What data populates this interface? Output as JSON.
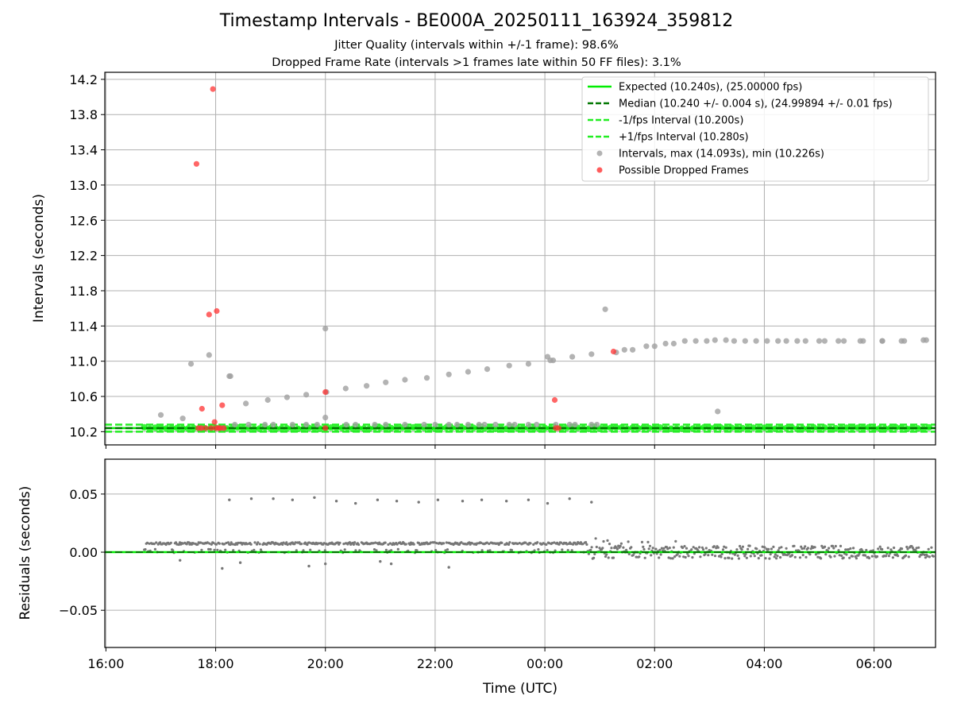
{
  "figure": {
    "title": "Timestamp Intervals - BE000A_20250111_163924_359812",
    "subtitle_jitter": "Jitter Quality (intervals within +/-1 frame): 98.6%",
    "subtitle_dropped": "Dropped Frame Rate (intervals >1 frames late within 50 FF files): 3.1%"
  },
  "colors": {
    "expected": "#00ee00",
    "median": "#007700",
    "bounds": "#22ee22",
    "intervals": "#a0a0a0",
    "dropped": "#ff3333",
    "residuals": "#777777",
    "grid": "#b0b0b0"
  },
  "chart_data": [
    {
      "type": "scatter",
      "id": "intervals",
      "xlabel": "",
      "ylabel": "Intervals (seconds)",
      "xlim_hours": [
        15.98,
        31.12
      ],
      "ylim": [
        10.05,
        14.28
      ],
      "yticks": [
        10.2,
        10.6,
        11.0,
        11.4,
        11.8,
        12.2,
        12.6,
        13.0,
        13.4,
        13.8,
        14.2
      ],
      "ytick_labels": [
        "10.2",
        "10.6",
        "11.0",
        "11.4",
        "11.8",
        "12.2",
        "12.6",
        "13.0",
        "13.4",
        "13.8",
        "14.2"
      ],
      "grid": true,
      "legend_position": "upper right",
      "legend": [
        {
          "key": "expected",
          "label": "Expected (10.240s), (25.00000 fps)",
          "style": "solid"
        },
        {
          "key": "median",
          "label": "Median (10.240 +/- 0.004 s), (24.99894 +/- 0.01 fps)",
          "style": "dashed"
        },
        {
          "key": "lower",
          "label": "-1/fps Interval (10.200s)",
          "style": "dashed"
        },
        {
          "key": "upper",
          "label": "+1/fps Interval (10.280s)",
          "style": "dashed"
        },
        {
          "key": "intervals",
          "label": "Intervals, max (14.093s), min (10.226s)",
          "style": "marker"
        },
        {
          "key": "dropped",
          "label": "Possible Dropped Frames",
          "style": "marker"
        }
      ],
      "lines": {
        "expected": 10.24,
        "median": 10.24,
        "lower": 10.2,
        "upper": 10.28
      },
      "series": [
        {
          "name": "Intervals, max (14.093s), min (10.226s)",
          "key": "intervals",
          "x_hours": [
            17.0,
            17.4,
            17.55,
            17.72,
            17.88,
            18.05,
            18.12,
            18.25,
            18.35,
            18.6,
            18.9,
            19.05,
            19.4,
            19.65,
            19.85,
            20.0,
            20.0,
            20.38,
            20.55,
            20.9,
            21.1,
            21.45,
            21.8,
            22.0,
            22.25,
            22.4,
            22.6,
            22.8,
            22.9,
            23.1,
            23.35,
            23.45,
            23.7,
            23.85,
            24.05,
            24.15,
            24.2,
            24.45,
            24.55,
            24.85,
            24.95,
            25.1,
            25.45,
            25.85,
            26.2,
            26.55,
            26.95,
            27.15,
            27.3,
            27.65,
            28.05,
            28.4,
            28.75,
            29.1,
            29.45,
            29.8,
            30.15,
            30.5,
            30.9
          ],
          "y": [
            10.39,
            10.35,
            10.97,
            10.24,
            11.07,
            10.24,
            10.24,
            10.83,
            10.28,
            10.28,
            10.28,
            10.28,
            10.28,
            10.28,
            10.28,
            11.37,
            10.36,
            10.28,
            10.28,
            10.28,
            10.28,
            10.28,
            10.28,
            10.28,
            10.28,
            10.28,
            10.28,
            10.28,
            10.28,
            10.28,
            10.28,
            10.28,
            10.28,
            10.28,
            11.05,
            11.01,
            10.28,
            10.28,
            10.28,
            10.28,
            10.28,
            11.59,
            11.13,
            11.17,
            11.2,
            11.23,
            11.23,
            10.43,
            11.24,
            11.23,
            11.23,
            11.23,
            11.23,
            11.23,
            11.23,
            11.23,
            11.23,
            11.23,
            11.24
          ]
        },
        {
          "name": "Intervals, max (14.093s), min (10.226s)",
          "key": "intervals_trend",
          "x_hours": [
            18.27,
            18.55,
            18.95,
            19.3,
            19.65,
            20.02,
            20.37,
            20.75,
            21.1,
            21.45,
            21.85,
            22.25,
            22.6,
            22.95,
            23.35,
            23.7,
            24.1,
            24.5,
            24.85,
            25.3,
            25.6,
            26.0,
            26.35,
            26.75,
            27.1,
            27.45,
            27.85,
            28.25,
            28.6,
            29.0,
            29.35,
            29.75,
            30.15,
            30.55,
            30.95
          ],
          "y": [
            10.83,
            10.52,
            10.56,
            10.59,
            10.62,
            10.65,
            10.69,
            10.72,
            10.76,
            10.79,
            10.81,
            10.85,
            10.88,
            10.91,
            10.95,
            10.97,
            11.01,
            11.05,
            11.08,
            11.1,
            11.13,
            11.17,
            11.2,
            11.23,
            11.24,
            11.23,
            11.23,
            11.23,
            11.23,
            11.23,
            11.23,
            11.23,
            11.23,
            11.23,
            11.24
          ]
        },
        {
          "name": "Possible Dropped Frames",
          "key": "dropped",
          "x_hours": [
            17.65,
            17.75,
            17.88,
            17.95,
            17.98,
            18.02,
            18.12,
            17.68,
            17.74,
            17.82,
            17.92,
            18.0,
            18.05,
            18.08,
            18.15,
            20.0,
            20.0,
            24.18,
            24.2,
            24.25,
            25.25
          ],
          "y": [
            13.24,
            10.46,
            11.53,
            14.09,
            10.31,
            11.57,
            10.5,
            10.24,
            10.24,
            10.24,
            10.24,
            10.24,
            10.24,
            10.24,
            10.24,
            10.65,
            10.24,
            10.56,
            10.24,
            10.24,
            11.11
          ]
        }
      ]
    },
    {
      "type": "scatter",
      "id": "residuals",
      "xlabel": "Time (UTC)",
      "ylabel": "Residuals (seconds)",
      "xlim_hours": [
        15.98,
        31.12
      ],
      "ylim": [
        -0.082,
        0.08
      ],
      "yticks": [
        -0.05,
        0.0,
        0.05
      ],
      "ytick_labels": [
        "−0.05",
        "0.00",
        "0.05"
      ],
      "xticks_hours": [
        16,
        18,
        20,
        22,
        24,
        26,
        28,
        30
      ],
      "xtick_labels": [
        "16:00",
        "18:00",
        "20:00",
        "22:00",
        "00:00",
        "02:00",
        "04:00",
        "06:00"
      ],
      "grid": true,
      "reference_lines": {
        "expected": 0.0,
        "median": 0.0
      },
      "series": [
        {
          "name": "",
          "key": "residual_outliers",
          "x_hours": [
            18.25,
            18.65,
            19.05,
            19.4,
            19.8,
            20.2,
            20.55,
            20.95,
            21.3,
            21.7,
            22.05,
            22.5,
            22.85,
            23.3,
            23.7,
            24.05,
            24.45,
            24.85,
            18.12,
            19.7,
            20.0,
            21.2,
            22.25,
            17.35,
            18.45,
            21.0
          ],
          "y": [
            0.045,
            0.046,
            0.046,
            0.045,
            0.047,
            0.044,
            0.042,
            0.045,
            0.044,
            0.043,
            0.045,
            0.044,
            0.045,
            0.044,
            0.045,
            0.042,
            0.046,
            0.043,
            -0.014,
            -0.012,
            -0.01,
            -0.01,
            -0.013,
            -0.007,
            -0.009,
            -0.008
          ]
        }
      ]
    }
  ]
}
